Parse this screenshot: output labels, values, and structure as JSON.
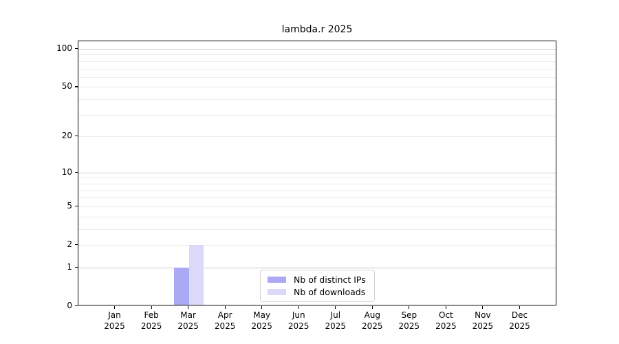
{
  "title": "lambda.r 2025",
  "chart_data": {
    "type": "bar",
    "title": "lambda.r 2025",
    "xlabel": "",
    "ylabel": "",
    "yscale": "log1p",
    "categories": [
      "Jan",
      "Feb",
      "Mar",
      "Apr",
      "May",
      "Jun",
      "Jul",
      "Aug",
      "Sep",
      "Oct",
      "Nov",
      "Dec"
    ],
    "category_year": "2025",
    "series": [
      {
        "name": "Nb of distinct IPs",
        "color": "#a9a9f4",
        "values": [
          0,
          0,
          1,
          0,
          0,
          0,
          0,
          0,
          0,
          0,
          0,
          0
        ]
      },
      {
        "name": "Nb of downloads",
        "color": "#dadaf8",
        "values": [
          0,
          0,
          2,
          0,
          0,
          0,
          0,
          0,
          0,
          0,
          0,
          0
        ]
      }
    ],
    "yticks": [
      0,
      1,
      2,
      5,
      10,
      20,
      50,
      100
    ],
    "major_grid_values": [
      1,
      10,
      100
    ],
    "minor_grid_values": [
      2,
      3,
      4,
      5,
      6,
      7,
      8,
      9,
      20,
      30,
      40,
      50,
      60,
      70,
      80,
      90
    ],
    "ylim": [
      0,
      115
    ],
    "xlim_months": [
      -0.5,
      12.5
    ],
    "grid": "horizontal",
    "legend_position": "lower-center-inside",
    "bar_width_fraction": 0.4
  },
  "colors": {
    "ips_bar": "#a9a9f4",
    "downloads_bar": "#dadaf8",
    "major_grid": "#c9c9c9",
    "minor_grid": "#ececec",
    "frame": "#000000",
    "text": "#000000",
    "legend_border": "#d4d4d4"
  }
}
